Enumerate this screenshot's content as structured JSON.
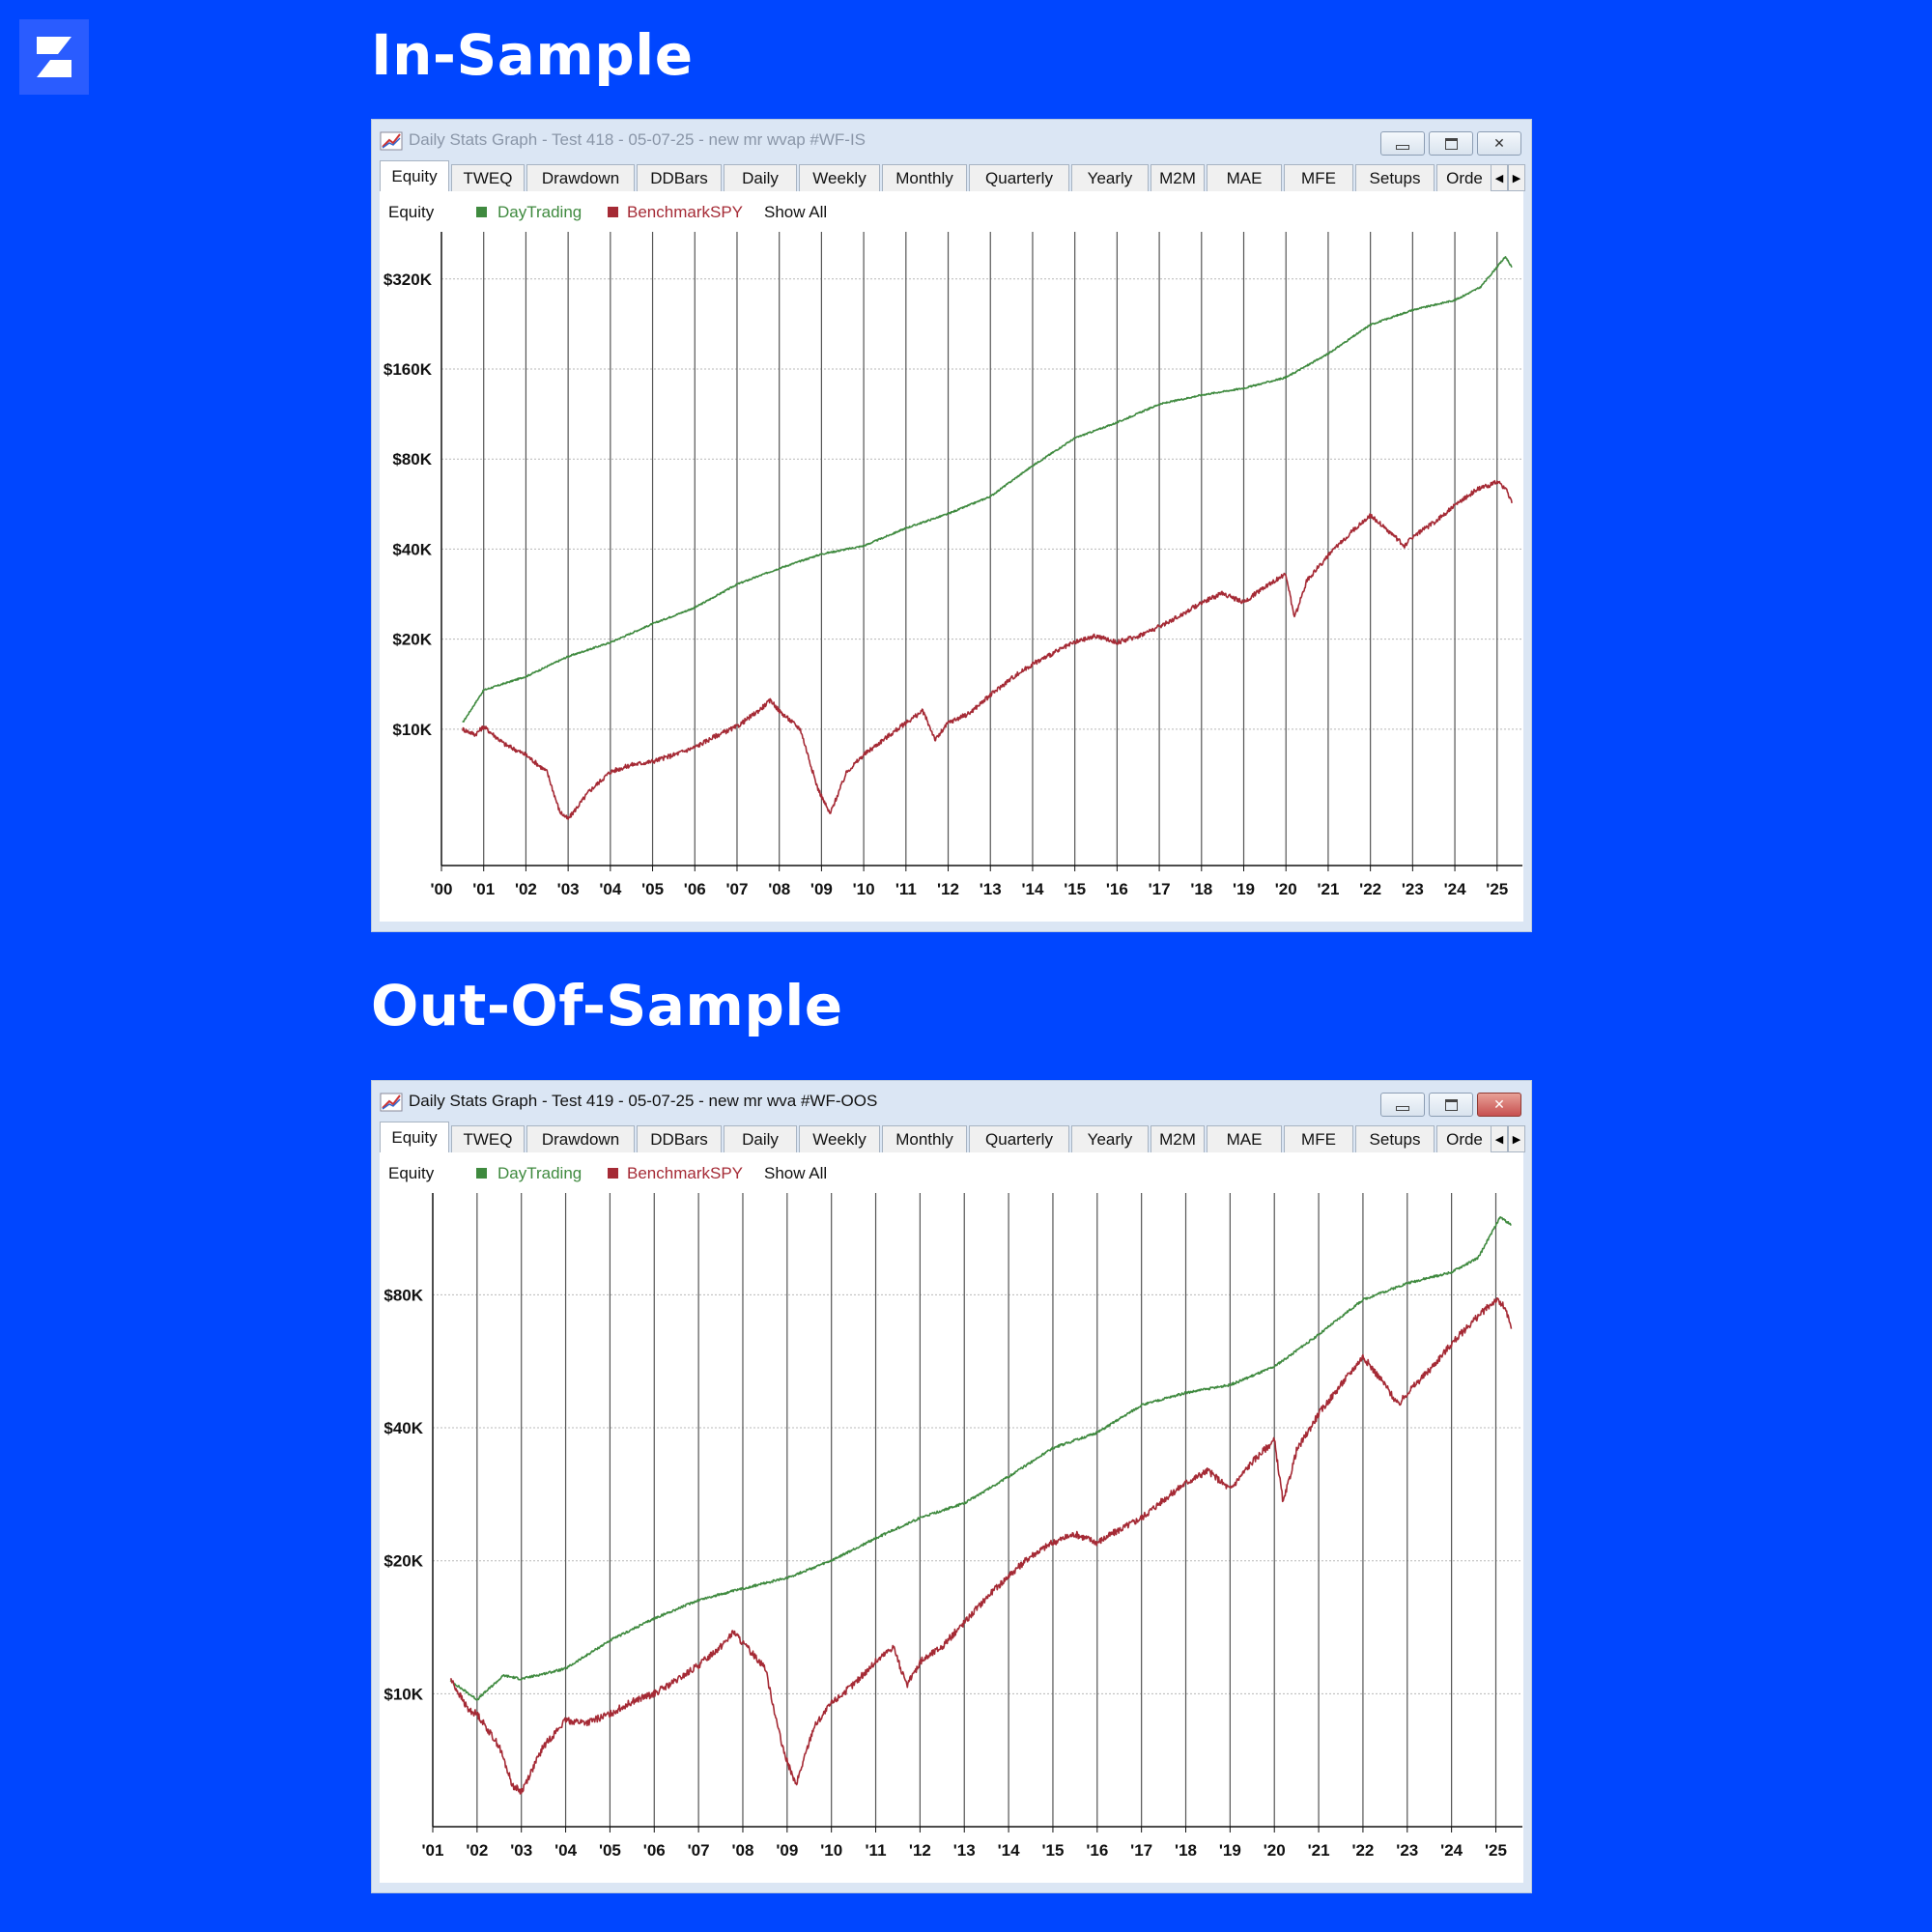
{
  "colors": {
    "background": "#0046ff",
    "day_trading": "#3f8a3f",
    "benchmark": "#a52a35"
  },
  "sections": [
    {
      "heading": "In-Sample"
    },
    {
      "heading": "Out-Of-Sample"
    }
  ],
  "windows": [
    {
      "title": "Daily Stats Graph - Test 418 - 05-07-25 - new mr wvap #WF-IS",
      "title_active": false,
      "tabs": [
        "Equity",
        "TWEQ",
        "Drawdown",
        "DDBars",
        "Daily",
        "Weekly",
        "Monthly",
        "Quarterly",
        "Yearly",
        "M2M",
        "MAE",
        "MFE",
        "Setups",
        "Orde"
      ],
      "legend": {
        "group": "Equity",
        "series1": "DayTrading",
        "series2": "BenchmarkSPY",
        "show_all": "Show All"
      },
      "chart_data": {
        "type": "line",
        "y_scale": "log",
        "y_ticks": [
          {
            "value": 10000,
            "label": "$10K"
          },
          {
            "value": 20000,
            "label": "$20K"
          },
          {
            "value": 40000,
            "label": "$40K"
          },
          {
            "value": 80000,
            "label": "$80K"
          },
          {
            "value": 160000,
            "label": "$160K"
          },
          {
            "value": 320000,
            "label": "$320K"
          }
        ],
        "ylim": [
          3500,
          460000
        ],
        "x_ticks": [
          "'00",
          "'01",
          "'02",
          "'03",
          "'04",
          "'05",
          "'06",
          "'07",
          "'08",
          "'09",
          "'10",
          "'11",
          "'12",
          "'13",
          "'14",
          "'15",
          "'16",
          "'17",
          "'18",
          "'19",
          "'20",
          "'21",
          "'22",
          "'23",
          "'24",
          "'25"
        ],
        "xlim": [
          2000.0,
          2025.6
        ],
        "grid": "horizontal dotted, vertical at years",
        "series": [
          {
            "name": "DayTrading",
            "points": [
              [
                2000.5,
                10500
              ],
              [
                2001.0,
                13500
              ],
              [
                2002.0,
                15000
              ],
              [
                2003.0,
                17500
              ],
              [
                2004.0,
                19500
              ],
              [
                2005.0,
                22500
              ],
              [
                2006.0,
                25500
              ],
              [
                2007.0,
                30500
              ],
              [
                2008.0,
                34500
              ],
              [
                2009.0,
                38500
              ],
              [
                2010.0,
                41000
              ],
              [
                2011.0,
                47000
              ],
              [
                2012.0,
                52500
              ],
              [
                2013.0,
                60000
              ],
              [
                2014.0,
                76000
              ],
              [
                2015.0,
                94000
              ],
              [
                2016.0,
                106000
              ],
              [
                2017.0,
                122000
              ],
              [
                2018.0,
                131000
              ],
              [
                2019.0,
                138000
              ],
              [
                2020.0,
                150000
              ],
              [
                2021.0,
                180000
              ],
              [
                2022.0,
                225000
              ],
              [
                2023.0,
                252000
              ],
              [
                2024.0,
                272000
              ],
              [
                2024.6,
                300000
              ],
              [
                2025.2,
                380000
              ],
              [
                2025.35,
                350000
              ]
            ]
          },
          {
            "name": "BenchmarkSPY",
            "points": [
              [
                2000.5,
                10000
              ],
              [
                2000.8,
                9600
              ],
              [
                2001.0,
                10200
              ],
              [
                2001.5,
                8900
              ],
              [
                2002.0,
                8200
              ],
              [
                2002.5,
                7200
              ],
              [
                2002.8,
                5300
              ],
              [
                2003.0,
                5000
              ],
              [
                2003.5,
                6200
              ],
              [
                2004.0,
                7200
              ],
              [
                2004.5,
                7600
              ],
              [
                2005.0,
                7800
              ],
              [
                2005.5,
                8200
              ],
              [
                2006.0,
                8700
              ],
              [
                2006.5,
                9500
              ],
              [
                2007.0,
                10200
              ],
              [
                2007.5,
                11500
              ],
              [
                2007.8,
                12500
              ],
              [
                2008.0,
                11500
              ],
              [
                2008.5,
                10000
              ],
              [
                2008.9,
                6400
              ],
              [
                2009.2,
                5200
              ],
              [
                2009.6,
                7200
              ],
              [
                2010.0,
                8200
              ],
              [
                2010.5,
                9300
              ],
              [
                2011.0,
                10500
              ],
              [
                2011.4,
                11500
              ],
              [
                2011.7,
                9200
              ],
              [
                2012.0,
                10500
              ],
              [
                2012.5,
                11300
              ],
              [
                2013.0,
                13000
              ],
              [
                2013.5,
                14800
              ],
              [
                2014.0,
                16500
              ],
              [
                2014.5,
                18000
              ],
              [
                2015.0,
                19500
              ],
              [
                2015.5,
                20500
              ],
              [
                2016.0,
                19500
              ],
              [
                2016.5,
                20500
              ],
              [
                2017.0,
                22000
              ],
              [
                2017.5,
                24000
              ],
              [
                2018.0,
                26500
              ],
              [
                2018.5,
                28500
              ],
              [
                2019.0,
                26500
              ],
              [
                2019.5,
                30000
              ],
              [
                2020.0,
                33000
              ],
              [
                2020.2,
                23500
              ],
              [
                2020.5,
                31500
              ],
              [
                2021.0,
                38000
              ],
              [
                2021.5,
                45000
              ],
              [
                2022.0,
                52000
              ],
              [
                2022.5,
                45000
              ],
              [
                2022.8,
                41000
              ],
              [
                2023.0,
                44000
              ],
              [
                2023.5,
                49000
              ],
              [
                2024.0,
                56000
              ],
              [
                2024.5,
                63000
              ],
              [
                2025.0,
                67000
              ],
              [
                2025.2,
                64000
              ],
              [
                2025.35,
                57000
              ]
            ]
          }
        ]
      }
    },
    {
      "title": "Daily Stats Graph - Test 419 - 05-07-25 - new mr wva #WF-OOS",
      "title_active": true,
      "tabs": [
        "Equity",
        "TWEQ",
        "Drawdown",
        "DDBars",
        "Daily",
        "Weekly",
        "Monthly",
        "Quarterly",
        "Yearly",
        "M2M",
        "MAE",
        "MFE",
        "Setups",
        "Orde"
      ],
      "legend": {
        "group": "Equity",
        "series1": "DayTrading",
        "series2": "BenchmarkSPY",
        "show_all": "Show All"
      },
      "chart_data": {
        "type": "line",
        "y_scale": "log",
        "y_ticks": [
          {
            "value": 10000,
            "label": "$10K"
          },
          {
            "value": 20000,
            "label": "$20K"
          },
          {
            "value": 40000,
            "label": "$40K"
          },
          {
            "value": 80000,
            "label": "$80K"
          }
        ],
        "ylim": [
          5000,
          136000
        ],
        "x_ticks": [
          "'01",
          "'02",
          "'03",
          "'04",
          "'05",
          "'06",
          "'07",
          "'08",
          "'09",
          "'10",
          "'11",
          "'12",
          "'13",
          "'14",
          "'15",
          "'16",
          "'17",
          "'18",
          "'19",
          "'20",
          "'21",
          "'22",
          "'23",
          "'24",
          "'25"
        ],
        "xlim": [
          2001.0,
          2025.6
        ],
        "grid": "horizontal dotted, vertical at years",
        "series": [
          {
            "name": "DayTrading",
            "points": [
              [
                2001.4,
                10700
              ],
              [
                2002.0,
                9700
              ],
              [
                2002.6,
                11000
              ],
              [
                2003.0,
                10800
              ],
              [
                2004.0,
                11400
              ],
              [
                2005.0,
                13200
              ],
              [
                2006.0,
                14800
              ],
              [
                2007.0,
                16300
              ],
              [
                2008.0,
                17300
              ],
              [
                2009.0,
                18300
              ],
              [
                2010.0,
                20000
              ],
              [
                2011.0,
                22500
              ],
              [
                2012.0,
                25000
              ],
              [
                2013.0,
                27000
              ],
              [
                2014.0,
                31000
              ],
              [
                2015.0,
                36000
              ],
              [
                2016.0,
                39000
              ],
              [
                2017.0,
                45000
              ],
              [
                2018.0,
                48000
              ],
              [
                2019.0,
                50000
              ],
              [
                2020.0,
                55000
              ],
              [
                2021.0,
                65000
              ],
              [
                2022.0,
                78000
              ],
              [
                2023.0,
                85000
              ],
              [
                2024.0,
                90000
              ],
              [
                2024.6,
                97000
              ],
              [
                2025.1,
                120000
              ],
              [
                2025.35,
                115000
              ]
            ]
          },
          {
            "name": "BenchmarkSPY",
            "points": [
              [
                2001.4,
                10800
              ],
              [
                2001.8,
                9200
              ],
              [
                2002.0,
                9000
              ],
              [
                2002.5,
                7600
              ],
              [
                2002.8,
                6200
              ],
              [
                2003.0,
                6000
              ],
              [
                2003.5,
                7600
              ],
              [
                2004.0,
                8700
              ],
              [
                2004.5,
                8600
              ],
              [
                2005.0,
                9000
              ],
              [
                2005.5,
                9600
              ],
              [
                2006.0,
                10000
              ],
              [
                2006.5,
                10700
              ],
              [
                2007.0,
                11600
              ],
              [
                2007.5,
                12800
              ],
              [
                2007.8,
                13800
              ],
              [
                2008.0,
                13000
              ],
              [
                2008.5,
                11500
              ],
              [
                2008.9,
                7500
              ],
              [
                2009.2,
                6200
              ],
              [
                2009.6,
                8400
              ],
              [
                2010.0,
                9500
              ],
              [
                2010.5,
                10500
              ],
              [
                2011.0,
                11800
              ],
              [
                2011.4,
                12800
              ],
              [
                2011.7,
                10400
              ],
              [
                2012.0,
                11800
              ],
              [
                2012.5,
                12800
              ],
              [
                2013.0,
                14500
              ],
              [
                2013.5,
                16500
              ],
              [
                2014.0,
                18500
              ],
              [
                2014.5,
                20500
              ],
              [
                2015.0,
                22000
              ],
              [
                2015.5,
                23000
              ],
              [
                2016.0,
                22000
              ],
              [
                2016.5,
                23500
              ],
              [
                2017.0,
                25000
              ],
              [
                2017.5,
                27500
              ],
              [
                2018.0,
                30000
              ],
              [
                2018.5,
                32000
              ],
              [
                2019.0,
                29000
              ],
              [
                2019.5,
                33500
              ],
              [
                2020.0,
                37500
              ],
              [
                2020.2,
                27000
              ],
              [
                2020.5,
                35500
              ],
              [
                2021.0,
                43000
              ],
              [
                2021.5,
                50000
              ],
              [
                2022.0,
                58000
              ],
              [
                2022.5,
                50000
              ],
              [
                2022.8,
                45000
              ],
              [
                2023.0,
                48000
              ],
              [
                2023.5,
                54000
              ],
              [
                2024.0,
                62000
              ],
              [
                2024.5,
                70000
              ],
              [
                2025.0,
                78000
              ],
              [
                2025.2,
                75000
              ],
              [
                2025.35,
                67000
              ]
            ]
          }
        ]
      }
    }
  ]
}
